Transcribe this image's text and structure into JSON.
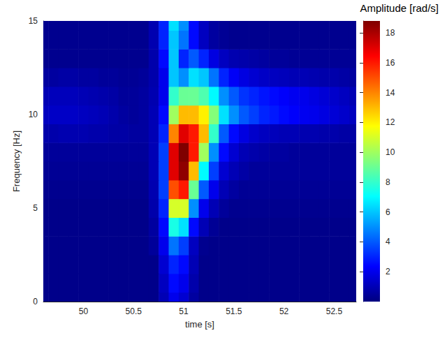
{
  "chart_data": {
    "type": "heatmap",
    "colorbar_title": "Amplitude [rad/s]",
    "x_label": "time [s]",
    "y_label": "Frequency [Hz]",
    "xlim": [
      49.6,
      52.72
    ],
    "xticks": [
      50,
      50.5,
      51,
      51.5,
      52,
      52.5
    ],
    "ylim": [
      0,
      15
    ],
    "yticks": [
      0,
      5,
      10,
      15
    ],
    "clim": [
      0,
      18.8
    ],
    "cticks": [
      2,
      4,
      6,
      8,
      10,
      12,
      14,
      16,
      18
    ],
    "x": [
      49.6,
      49.7,
      49.8,
      49.9,
      50,
      50.1,
      50.2,
      50.3,
      50.4,
      50.5,
      50.6,
      50.7,
      50.8,
      50.9,
      51,
      51.1,
      51.2,
      51.3,
      51.4,
      51.5,
      51.6,
      51.7,
      51.8,
      51.9,
      52,
      52.1,
      52.2,
      52.3,
      52.4,
      52.5,
      52.6,
      52.7
    ],
    "y": [
      0,
      1,
      2,
      3,
      4,
      5,
      6,
      7,
      8,
      9,
      10,
      11,
      12,
      13,
      14,
      15
    ],
    "values": [
      [
        0.2,
        0.2,
        0.2,
        0.2,
        0.2,
        0.2,
        0.2,
        0.2,
        0.2,
        0.2,
        0.2,
        0.2,
        1.0,
        2.0,
        1.5,
        0.6,
        0.2,
        0.2,
        0.2,
        0.2,
        0.2,
        0.2,
        0.2,
        0.2,
        0.2,
        0.2,
        0.2,
        0.2,
        0.2,
        0.2,
        0.2,
        0.2
      ],
      [
        0.2,
        0.2,
        0.2,
        0.2,
        0.2,
        0.2,
        0.2,
        0.2,
        0.2,
        0.2,
        0.2,
        0.2,
        1.2,
        2.5,
        2.0,
        0.8,
        0.2,
        0.2,
        0.2,
        0.2,
        0.2,
        0.2,
        0.2,
        0.2,
        0.2,
        0.2,
        0.2,
        0.2,
        0.2,
        0.2,
        0.2,
        0.2
      ],
      [
        0.2,
        0.2,
        0.2,
        0.2,
        0.2,
        0.2,
        0.2,
        0.2,
        0.2,
        0.2,
        0.2,
        0.2,
        1.5,
        3.0,
        2.5,
        1.0,
        0.2,
        0.2,
        0.2,
        0.2,
        0.2,
        0.2,
        0.2,
        0.2,
        0.2,
        0.2,
        0.2,
        0.2,
        0.2,
        0.2,
        0.2,
        0.2
      ],
      [
        0.2,
        0.2,
        0.2,
        0.2,
        0.2,
        0.2,
        0.2,
        0.2,
        0.2,
        0.2,
        0.2,
        0.5,
        2.0,
        4.5,
        3.5,
        1.2,
        0.3,
        0.2,
        0.2,
        0.2,
        0.2,
        0.2,
        0.2,
        0.2,
        0.2,
        0.2,
        0.2,
        0.2,
        0.2,
        0.2,
        0.2,
        0.2
      ],
      [
        0.2,
        0.2,
        0.2,
        0.2,
        0.2,
        0.2,
        0.2,
        0.2,
        0.2,
        0.2,
        0.2,
        0.6,
        2.5,
        7.5,
        6.5,
        2.5,
        1.0,
        0.4,
        0.2,
        0.2,
        0.2,
        0.2,
        0.2,
        0.2,
        0.2,
        0.2,
        0.2,
        0.2,
        0.2,
        0.2,
        0.2,
        0.2
      ],
      [
        0.2,
        0.2,
        0.2,
        0.2,
        0.2,
        0.2,
        0.2,
        0.2,
        0.2,
        0.2,
        0.2,
        0.8,
        3.0,
        11,
        11,
        5,
        2,
        1,
        0.5,
        0.3,
        0.3,
        0.3,
        0.3,
        0.3,
        0.3,
        0.3,
        0.3,
        0.3,
        0.3,
        0.3,
        0.3,
        0.3
      ],
      [
        0.3,
        0.3,
        0.3,
        0.3,
        0.3,
        0.3,
        0.3,
        0.3,
        0.3,
        0.3,
        0.3,
        0.9,
        3.5,
        15,
        16,
        9,
        4,
        2,
        1,
        0.6,
        0.4,
        0.4,
        0.4,
        0.4,
        0.4,
        0.4,
        0.4,
        0.4,
        0.4,
        0.4,
        0.4,
        0.4
      ],
      [
        0.4,
        0.4,
        0.4,
        0.4,
        0.4,
        0.4,
        0.4,
        0.4,
        0.4,
        0.4,
        0.4,
        1.0,
        3.5,
        17,
        18.5,
        13,
        7,
        3.5,
        1.5,
        1.0,
        0.7,
        0.5,
        0.5,
        0.5,
        0.5,
        0.5,
        0.5,
        0.5,
        0.5,
        0.5,
        0.5,
        0.5
      ],
      [
        0.5,
        0.5,
        0.5,
        0.5,
        0.5,
        0.5,
        0.5,
        0.5,
        0.5,
        0.5,
        0.5,
        1.0,
        3.5,
        17,
        18.8,
        16,
        10,
        5,
        2.5,
        1.5,
        1.0,
        0.8,
        0.7,
        0.6,
        0.6,
        0.5,
        0.5,
        0.5,
        0.5,
        0.5,
        0.5,
        0.5
      ],
      [
        0.8,
        0.8,
        0.9,
        0.9,
        0.9,
        0.8,
        0.8,
        0.7,
        0.7,
        0.6,
        0.6,
        1.0,
        3,
        14,
        17,
        16,
        13,
        8,
        4,
        2.5,
        1.8,
        1.4,
        1.2,
        1.1,
        1.0,
        1.0,
        0.9,
        0.9,
        0.8,
        0.8,
        0.7,
        0.7
      ],
      [
        1.2,
        1.3,
        1.3,
        1.3,
        1.2,
        1.1,
        1.0,
        0.8,
        0.6,
        0.5,
        0.6,
        1.0,
        2.5,
        10,
        13,
        13,
        12,
        9.5,
        6.5,
        5,
        4,
        3.5,
        3,
        2.8,
        2.5,
        2.3,
        2.1,
        2,
        1.8,
        1.6,
        1.4,
        1.2
      ],
      [
        1.0,
        1.1,
        1.1,
        1.1,
        1.0,
        0.9,
        0.8,
        0.7,
        0.5,
        0.5,
        0.6,
        0.9,
        2,
        8,
        9,
        9,
        8.5,
        7,
        5,
        4,
        3.3,
        3,
        2.7,
        2.5,
        2.3,
        2.1,
        2,
        1.8,
        1.6,
        1.4,
        1.2,
        1.0
      ],
      [
        0.6,
        0.6,
        0.7,
        0.7,
        0.6,
        0.6,
        0.5,
        0.5,
        0.4,
        0.4,
        0.5,
        0.8,
        2,
        6,
        5,
        6.5,
        6,
        4.5,
        3,
        2.2,
        1.8,
        1.5,
        1.3,
        1.2,
        1.1,
        1.0,
        1.0,
        0.9,
        0.8,
        0.8,
        0.7,
        0.6
      ],
      [
        0.3,
        0.3,
        0.3,
        0.3,
        0.3,
        0.3,
        0.3,
        0.3,
        0.3,
        0.3,
        0.3,
        0.8,
        2.5,
        6,
        3,
        4,
        3,
        1.8,
        1.2,
        0.9,
        0.8,
        0.7,
        0.6,
        0.5,
        0.5,
        0.4,
        0.4,
        0.4,
        0.4,
        0.4,
        0.4,
        0.4
      ],
      [
        0.3,
        0.3,
        0.3,
        0.3,
        0.3,
        0.3,
        0.3,
        0.3,
        0.3,
        0.3,
        0.3,
        0.9,
        3,
        6,
        4.5,
        2.5,
        1.2,
        0.6,
        0.4,
        0.3,
        0.3,
        0.3,
        0.3,
        0.3,
        0.3,
        0.3,
        0.3,
        0.3,
        0.3,
        0.3,
        0.3,
        0.3
      ],
      [
        0.3,
        0.3,
        0.3,
        0.3,
        0.3,
        0.3,
        0.3,
        0.3,
        0.3,
        0.3,
        0.3,
        0.9,
        3,
        6.5,
        5,
        2.5,
        1.2,
        0.6,
        0.4,
        0.3,
        0.3,
        0.3,
        0.3,
        0.3,
        0.3,
        0.3,
        0.3,
        0.3,
        0.3,
        0.3,
        0.3,
        0.3
      ]
    ]
  }
}
